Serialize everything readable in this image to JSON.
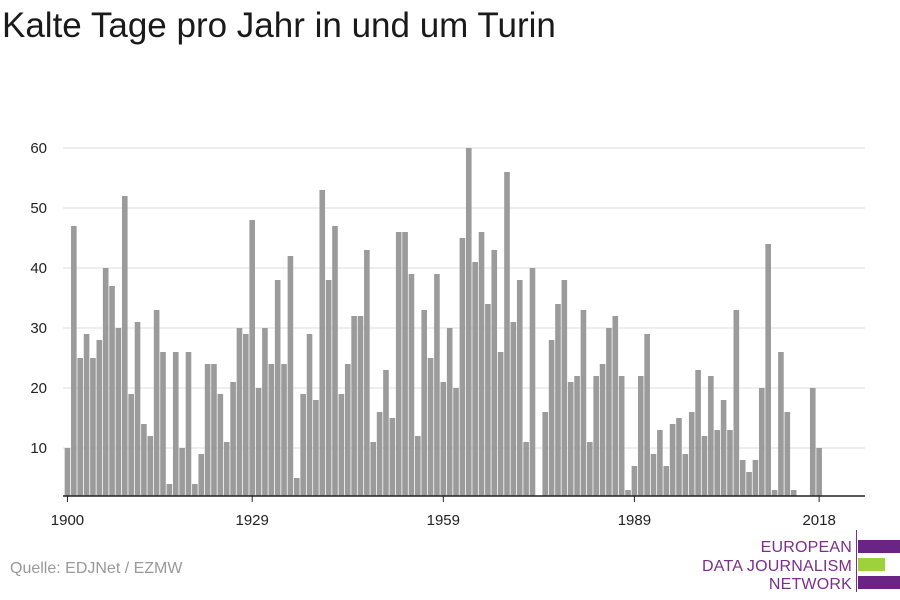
{
  "title": "Kalte Tage pro Jahr in und um Turin",
  "source": "Quelle: EDJNet / EZMW",
  "logo": {
    "lines": [
      "EUROPEAN",
      "DATA JOURNALISM",
      "NETWORK"
    ],
    "colors": {
      "purple": "#6a2584",
      "green": "#9ed23a"
    }
  },
  "chart_data": {
    "type": "bar",
    "title": "",
    "xlabel": "",
    "ylabel": "",
    "x": [
      1900,
      1901,
      1902,
      1903,
      1904,
      1905,
      1906,
      1907,
      1908,
      1909,
      1910,
      1911,
      1912,
      1913,
      1914,
      1915,
      1916,
      1917,
      1918,
      1919,
      1920,
      1921,
      1922,
      1923,
      1924,
      1925,
      1926,
      1927,
      1928,
      1929,
      1930,
      1931,
      1932,
      1933,
      1934,
      1935,
      1936,
      1937,
      1938,
      1939,
      1940,
      1941,
      1942,
      1943,
      1944,
      1945,
      1946,
      1947,
      1948,
      1949,
      1950,
      1951,
      1952,
      1953,
      1954,
      1955,
      1956,
      1957,
      1958,
      1959,
      1960,
      1961,
      1962,
      1963,
      1964,
      1965,
      1966,
      1967,
      1968,
      1969,
      1970,
      1971,
      1972,
      1973,
      1974,
      1975,
      1976,
      1977,
      1978,
      1979,
      1980,
      1981,
      1982,
      1983,
      1984,
      1985,
      1986,
      1987,
      1988,
      1989,
      1990,
      1991,
      1992,
      1993,
      1994,
      1995,
      1996,
      1997,
      1998,
      1999,
      2000,
      2001,
      2002,
      2003,
      2004,
      2005,
      2006,
      2007,
      2008,
      2009,
      2010,
      2011,
      2012,
      2013,
      2014,
      2015,
      2016,
      2017,
      2018
    ],
    "values": [
      10,
      47,
      25,
      29,
      25,
      28,
      40,
      37,
      30,
      52,
      19,
      31,
      14,
      12,
      33,
      26,
      4,
      26,
      10,
      26,
      4,
      9,
      24,
      24,
      19,
      11,
      21,
      30,
      29,
      48,
      20,
      30,
      24,
      38,
      24,
      42,
      5,
      19,
      29,
      18,
      53,
      38,
      47,
      19,
      24,
      32,
      32,
      43,
      11,
      16,
      23,
      15,
      46,
      46,
      39,
      12,
      33,
      25,
      39,
      21,
      30,
      20,
      45,
      60,
      41,
      46,
      34,
      43,
      26,
      56,
      31,
      38,
      11,
      40,
      0,
      16,
      28,
      34,
      38,
      21,
      22,
      33,
      11,
      22,
      24,
      30,
      32,
      22,
      3,
      7,
      22,
      29,
      9,
      13,
      7,
      14,
      15,
      9,
      16,
      23,
      12,
      22,
      13,
      18,
      13,
      33,
      8,
      6,
      8,
      20,
      44,
      3,
      26,
      16,
      3,
      0,
      0,
      20,
      10
    ],
    "xticks": [
      1900,
      1929,
      1959,
      1989,
      2018
    ],
    "yticks": [
      10,
      20,
      30,
      40,
      50,
      60
    ],
    "ylim": [
      2,
      62
    ],
    "xlim": [
      1899.3,
      2025.2
    ],
    "grid": true,
    "colors": {
      "bar": "#9b9b9b",
      "grid": "#dddddd",
      "axis": "#222222"
    }
  }
}
